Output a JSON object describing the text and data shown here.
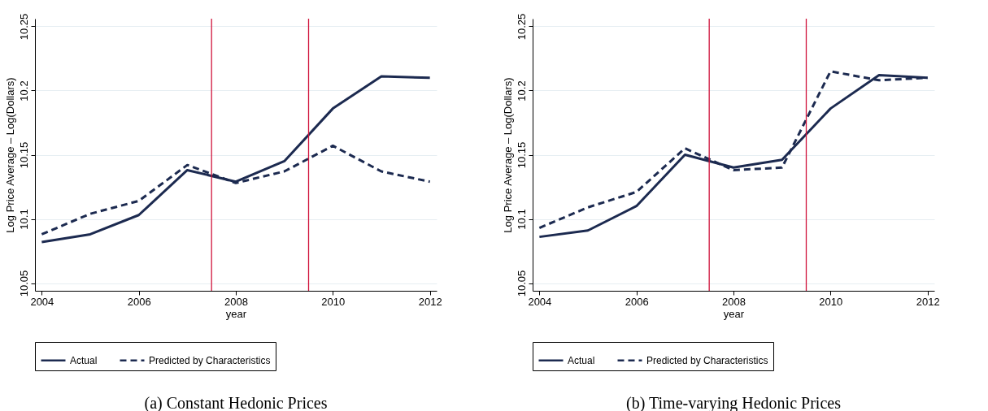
{
  "chart_data": [
    {
      "type": "line",
      "title": "(a) Constant Hedonic Prices",
      "xlabel": "year",
      "ylabel": "Log Price Average – Log(Dollars)",
      "x": [
        2004,
        2005,
        2006,
        2007,
        2008,
        2009,
        2010,
        2011,
        2012
      ],
      "series": [
        {
          "name": "Actual",
          "color": "#1c2a50",
          "line_style": "solid",
          "values": [
            10.082,
            10.088,
            10.103,
            10.138,
            10.129,
            10.145,
            10.186,
            10.211,
            10.21
          ]
        },
        {
          "name": "Predicted by Characteristics",
          "color": "#1c2a50",
          "line_style": "dashed",
          "values": [
            10.088,
            10.104,
            10.114,
            10.142,
            10.128,
            10.137,
            10.157,
            10.137,
            10.129
          ]
        }
      ],
      "xlim": [
        2003.86,
        2012.14
      ],
      "ylim": [
        10.044,
        10.256
      ],
      "xticks": [
        2004,
        2006,
        2008,
        2010,
        2012
      ],
      "yticks": [
        10.05,
        10.1,
        10.15,
        10.2,
        10.25
      ],
      "grid": "y",
      "legend": "bottom",
      "ref_lines": [
        {
          "axis": "x",
          "value": 2007.5,
          "color": "#d0143c"
        },
        {
          "axis": "x",
          "value": 2009.5,
          "color": "#d0143c"
        }
      ]
    },
    {
      "type": "line",
      "title": "(b) Time-varying Hedonic Prices",
      "xlabel": "year",
      "ylabel": "Log Price Average – Log(Dollars)",
      "x": [
        2004,
        2005,
        2006,
        2007,
        2008,
        2009,
        2010,
        2011,
        2012
      ],
      "series": [
        {
          "name": "Actual",
          "color": "#1c2a50",
          "line_style": "solid",
          "values": [
            10.086,
            10.091,
            10.11,
            10.15,
            10.14,
            10.146,
            10.186,
            10.212,
            10.21
          ]
        },
        {
          "name": "Predicted by Characteristics",
          "color": "#1c2a50",
          "line_style": "dashed",
          "values": [
            10.093,
            10.109,
            10.121,
            10.155,
            10.138,
            10.14,
            10.215,
            10.208,
            10.21
          ]
        }
      ],
      "xlim": [
        2003.86,
        2012.14
      ],
      "ylim": [
        10.044,
        10.256
      ],
      "xticks": [
        2004,
        2006,
        2008,
        2010,
        2012
      ],
      "yticks": [
        10.05,
        10.1,
        10.15,
        10.2,
        10.25
      ],
      "grid": "y",
      "legend": "bottom",
      "ref_lines": [
        {
          "axis": "x",
          "value": 2007.5,
          "color": "#d0143c"
        },
        {
          "axis": "x",
          "value": 2009.5,
          "color": "#d0143c"
        }
      ]
    }
  ]
}
